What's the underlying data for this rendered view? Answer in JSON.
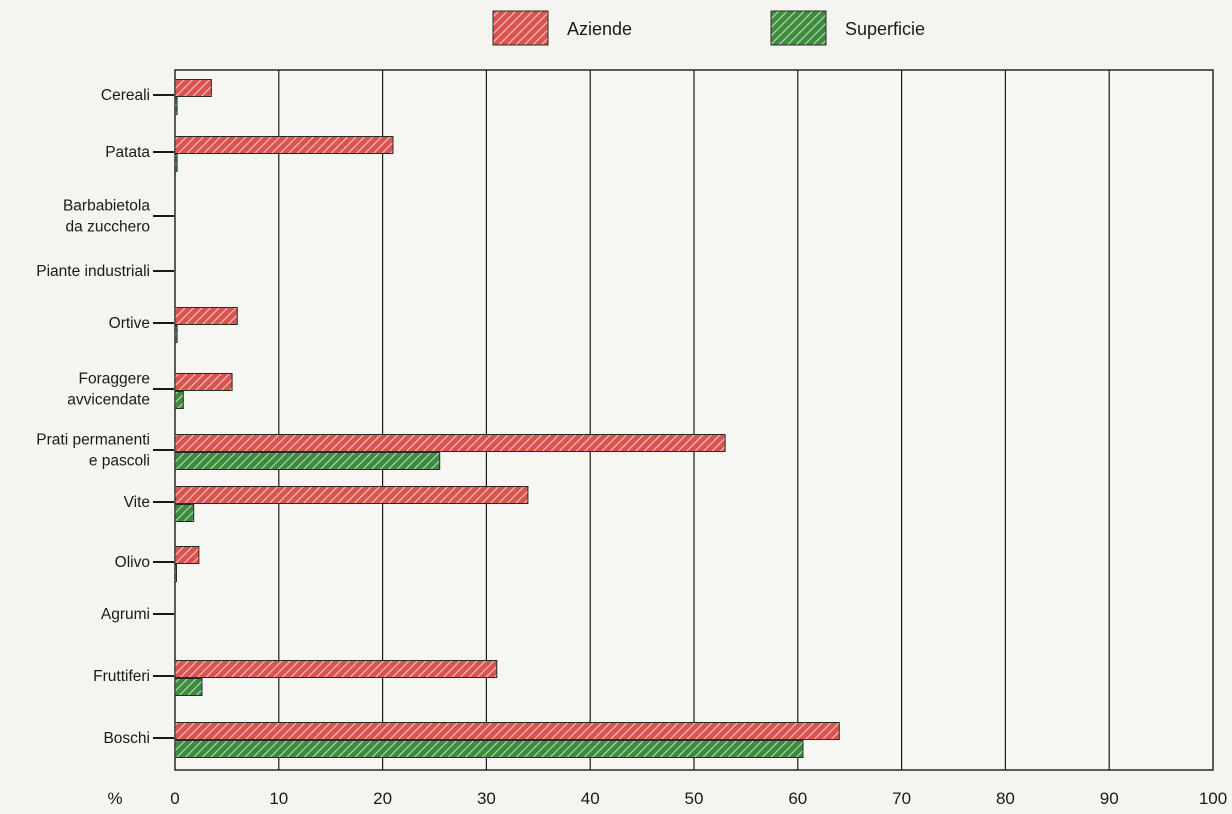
{
  "chart_data": {
    "type": "bar",
    "orientation": "horizontal",
    "categories": [
      [
        "Cereali"
      ],
      [
        "Patata"
      ],
      [
        "Barbabietola",
        "da zucchero"
      ],
      [
        "Piante industriali"
      ],
      [
        "Ortive"
      ],
      [
        "Foraggere",
        "avvicendate"
      ],
      [
        "Prati permanenti",
        "e pascoli"
      ],
      [
        "Vite"
      ],
      [
        "Olivo"
      ],
      [
        "Agrumi"
      ],
      [
        "Fruttiferi"
      ],
      [
        "Boschi"
      ]
    ],
    "series": [
      {
        "name": "Aziende",
        "values": [
          3.5,
          21,
          0,
          0,
          6,
          5.5,
          53,
          34,
          2.3,
          0,
          31,
          64
        ],
        "color": "#d9534f",
        "hatch": "#f2c7c0"
      },
      {
        "name": "Superficie",
        "values": [
          0.2,
          0.2,
          0,
          0,
          0.2,
          0.8,
          25.5,
          1.8,
          0.1,
          0,
          2.6,
          60.5
        ],
        "color": "#3e8a3e",
        "hatch": "#b9dcb0"
      }
    ],
    "xaxis_unit": "%",
    "xticks": [
      0,
      10,
      20,
      30,
      40,
      50,
      60,
      70,
      80,
      90,
      100
    ],
    "xlim": [
      0,
      100
    ],
    "grid": "vertical",
    "legend": "top-center"
  }
}
